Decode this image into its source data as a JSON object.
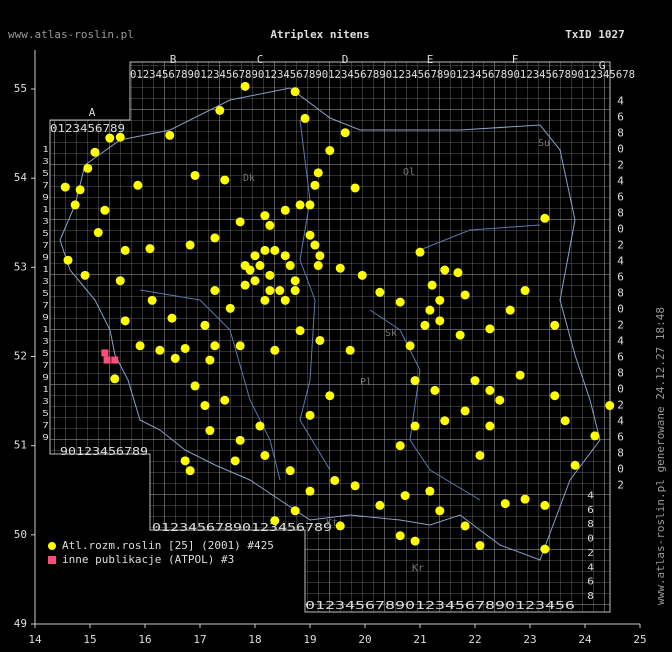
{
  "header": {
    "site": "www.atlas-roslin.pl",
    "title": "Atriplex nitens",
    "taxon": "TxID 1027"
  },
  "side_text": "www.atlas-roslin.pl generowane 24.12.27 18:48",
  "map": {
    "xlim": [
      14,
      25
    ],
    "ylim": [
      49,
      55
    ],
    "xticks": [
      14,
      15,
      16,
      17,
      18,
      19,
      20,
      21,
      22,
      23,
      24,
      25
    ],
    "yticks": [
      49,
      50,
      51,
      52,
      53,
      54,
      55
    ]
  },
  "grid_labels": {
    "top": "0123456789012345678901234567890123456789012345678901234567890123456789012345678",
    "a_top": "0123456789",
    "letters": [
      "A",
      "B",
      "C",
      "D",
      "E",
      "F",
      "G"
    ],
    "left": "1357913579135791357913579",
    "right": "4680246802468024680246802",
    "bottom_a": "90123456789",
    "bottom_c": "01234567890123456789",
    "bottom_g": "012345678901234567890123456",
    "right_g": "46802468"
  },
  "place_labels": [
    "Dk",
    "Ol",
    "Sk",
    "Pl",
    "Su",
    "Kt",
    "Kr"
  ],
  "legend": [
    {
      "name": "Atl.rozm.roslin [25] (2001) #425",
      "color": "#ffff00"
    },
    {
      "name": "inne publikacje (ATPOL) #3",
      "color": "#ff4d7a"
    }
  ],
  "series": [
    {
      "name": "Atl.rozm.roslin [25] (2001) #425",
      "color": "#ffff00",
      "x": [
        17.82,
        18.73,
        18.91,
        17.36,
        16.45,
        19.64,
        19.36,
        19.15,
        19.09,
        19.82,
        18.82,
        19.0,
        18.55,
        18.18,
        18.27,
        17.73,
        17.27,
        16.82,
        16.09,
        15.64,
        15.15,
        14.91,
        14.6,
        14.55,
        14.73,
        14.82,
        15.09,
        14.96,
        15.36,
        15.55,
        15.27,
        15.87,
        16.91,
        17.45,
        17.82,
        18.0,
        18.18,
        18.36,
        18.55,
        18.64,
        18.73,
        18.73,
        18.55,
        18.18,
        17.82,
        17.91,
        18.09,
        18.27,
        18.0,
        18.27,
        18.45,
        19.0,
        19.09,
        19.18,
        19.15,
        19.55,
        19.95,
        20.27,
        20.64,
        21.0,
        21.22,
        21.45,
        21.69,
        21.82,
        21.36,
        21.18,
        21.36,
        21.09,
        21.73,
        22.27,
        22.64,
        22.91,
        23.27,
        23.45,
        17.55,
        17.27,
        17.09,
        17.27,
        17.18,
        16.91,
        17.09,
        17.45,
        17.73,
        18.36,
        18.82,
        19.18,
        19.73,
        20.82,
        20.91,
        21.27,
        21.45,
        21.82,
        22.0,
        22.27,
        22.45,
        22.27,
        22.09,
        22.82,
        23.45,
        23.64,
        24.18,
        24.45,
        23.82,
        16.73,
        16.82,
        17.18,
        17.64,
        18.18,
        18.64,
        19.0,
        19.45,
        19.82,
        18.73,
        20.27,
        20.73,
        21.18,
        21.36,
        20.91,
        21.82,
        22.55,
        22.91,
        23.27,
        23.27,
        22.09,
        20.64,
        19.55,
        18.36,
        20.91,
        20.64,
        19.36,
        19.0,
        18.09,
        17.73,
        16.73,
        16.27,
        15.91,
        15.64,
        15.55,
        15.45,
        16.13,
        16.49,
        16.55
      ],
      "y": [
        55.03,
        54.97,
        54.67,
        54.76,
        54.48,
        54.51,
        54.31,
        54.06,
        53.92,
        53.89,
        53.7,
        53.7,
        53.64,
        53.58,
        53.47,
        53.51,
        53.33,
        53.25,
        53.21,
        53.19,
        53.39,
        52.91,
        53.08,
        53.9,
        53.7,
        53.87,
        54.29,
        54.11,
        54.45,
        54.46,
        53.64,
        53.92,
        54.03,
        53.98,
        53.02,
        53.13,
        53.19,
        53.19,
        53.13,
        53.02,
        52.85,
        52.74,
        52.63,
        52.63,
        52.8,
        52.97,
        53.02,
        52.91,
        52.85,
        52.74,
        52.74,
        53.36,
        53.25,
        53.13,
        53.02,
        52.99,
        52.91,
        52.72,
        52.61,
        53.17,
        52.8,
        52.97,
        52.94,
        52.69,
        52.63,
        52.52,
        52.4,
        52.35,
        52.24,
        52.31,
        52.52,
        52.74,
        53.55,
        52.35,
        52.54,
        52.74,
        52.35,
        52.12,
        51.96,
        51.67,
        51.45,
        51.51,
        52.12,
        52.07,
        52.29,
        52.18,
        52.07,
        52.12,
        51.73,
        51.62,
        51.28,
        51.39,
        51.73,
        51.62,
        51.51,
        51.22,
        50.89,
        51.79,
        51.56,
        51.28,
        51.11,
        51.45,
        50.78,
        50.83,
        50.72,
        51.17,
        50.83,
        50.89,
        50.72,
        50.49,
        50.61,
        50.55,
        50.27,
        50.33,
        50.44,
        50.49,
        50.27,
        49.93,
        50.1,
        50.35,
        50.4,
        50.33,
        49.84,
        49.88,
        49.99,
        50.1,
        50.16,
        51.22,
        51.0,
        51.56,
        51.34,
        51.22,
        51.06,
        52.09,
        52.07,
        52.12,
        52.4,
        52.85,
        51.75,
        52.63,
        52.43,
        51.98
      ]
    },
    {
      "name": "inne publikacje (ATPOL) #3",
      "color": "#ff4d7a",
      "x": [
        15.27,
        15.31,
        15.45
      ],
      "y": [
        52.04,
        51.96,
        51.96
      ]
    }
  ]
}
